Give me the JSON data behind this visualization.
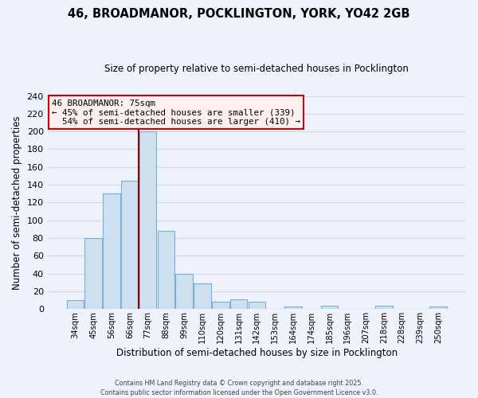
{
  "title": "46, BROADMANOR, POCKLINGTON, YORK, YO42 2GB",
  "subtitle": "Size of property relative to semi-detached houses in Pocklington",
  "xlabel": "Distribution of semi-detached houses by size in Pocklington",
  "ylabel": "Number of semi-detached properties",
  "bin_labels": [
    "34sqm",
    "45sqm",
    "56sqm",
    "66sqm",
    "77sqm",
    "88sqm",
    "99sqm",
    "110sqm",
    "120sqm",
    "131sqm",
    "142sqm",
    "153sqm",
    "164sqm",
    "174sqm",
    "185sqm",
    "196sqm",
    "207sqm",
    "218sqm",
    "228sqm",
    "239sqm",
    "250sqm"
  ],
  "bar_values": [
    10,
    80,
    130,
    145,
    200,
    88,
    40,
    29,
    8,
    11,
    8,
    0,
    3,
    0,
    4,
    0,
    0,
    4,
    0,
    0,
    3
  ],
  "bar_color": "#cce0f0",
  "bar_edge_color": "#7ab0d8",
  "background_color": "#eef2fa",
  "grid_color": "#d0d8e8",
  "marker_label": "46 BROADMANOR: 75sqm",
  "pct_smaller": 45,
  "pct_larger": 54,
  "count_smaller": 339,
  "count_larger": 410,
  "ann_facecolor": "#fff0f0",
  "ann_edgecolor": "#cc0000",
  "ylim_max": 240,
  "ytick_step": 20,
  "footer1": "Contains HM Land Registry data © Crown copyright and database right 2025.",
  "footer2": "Contains public sector information licensed under the Open Government Licence v3.0.",
  "marker_bin_index": 4,
  "red_line_color": "#990000"
}
